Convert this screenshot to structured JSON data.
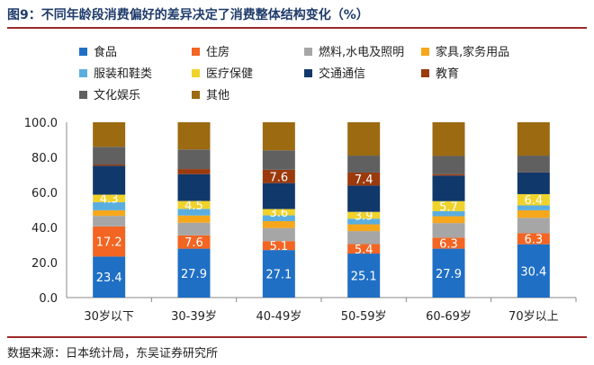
{
  "title": "图9：不同年龄段消费偏好的差异决定了消费整体结构变化（%）",
  "source": "数据来源：日本统计局，东吴证券研究所",
  "chart_data": {
    "type": "bar",
    "stacked": true,
    "categories": [
      "30岁以下",
      "30-39岁",
      "40-49岁",
      "50-59岁",
      "60-69岁",
      "70岁以上"
    ],
    "ylim": [
      0,
      100
    ],
    "yticks": [
      "0.0",
      "20.0",
      "40.0",
      "60.0",
      "80.0",
      "100.0"
    ],
    "grid": false,
    "legend_position": "top",
    "series": [
      {
        "name": "食品",
        "color": "#1f6fc5",
        "values": [
          23.4,
          27.9,
          27.1,
          25.1,
          27.9,
          30.4
        ],
        "labels": [
          "23.4",
          "27.9",
          "27.1",
          "25.1",
          "27.9",
          "30.4"
        ]
      },
      {
        "name": "住房",
        "color": "#f26522",
        "values": [
          17.2,
          7.6,
          5.1,
          5.4,
          6.3,
          6.3
        ],
        "labels": [
          "17.2",
          "7.6",
          "5.1",
          "5.4",
          "6.3",
          "6.3"
        ]
      },
      {
        "name": "燃料,水电及照明",
        "color": "#a6a6a6",
        "values": [
          6.0,
          7.2,
          7.5,
          7.4,
          8.3,
          8.8
        ],
        "labels": [
          "",
          "",
          "",
          "",
          "",
          ""
        ]
      },
      {
        "name": "家具,家务用品",
        "color": "#f7a71c",
        "values": [
          3.2,
          4.1,
          3.9,
          3.9,
          3.9,
          4.3
        ],
        "labels": [
          "",
          "",
          "",
          "",
          "",
          ""
        ]
      },
      {
        "name": "服装和鞋类",
        "color": "#5aaedf",
        "values": [
          4.6,
          3.8,
          3.3,
          3.2,
          2.9,
          2.8
        ],
        "labels": [
          "",
          "",
          "",
          "",
          "",
          ""
        ]
      },
      {
        "name": "医疗保健",
        "color": "#f0d22c",
        "values": [
          4.3,
          4.5,
          3.6,
          3.9,
          5.7,
          6.4
        ],
        "labels": [
          "4.3",
          "4.5",
          "3.6",
          "3.9",
          "5.7",
          "6.4"
        ]
      },
      {
        "name": "交通通信",
        "color": "#11386a",
        "values": [
          16.5,
          15.3,
          14.8,
          15.0,
          14.6,
          12.5
        ],
        "labels": [
          "",
          "",
          "",
          "",
          "",
          ""
        ]
      },
      {
        "name": "教育",
        "color": "#9b3a0c",
        "values": [
          0.7,
          2.9,
          7.6,
          7.4,
          0.8,
          0.2
        ],
        "labels": [
          "0.7",
          "2.9",
          "7.6",
          "7.4",
          "0.8",
          "0.2"
        ]
      },
      {
        "name": "文化娱乐",
        "color": "#606060",
        "values": [
          10.1,
          11.2,
          11.1,
          9.7,
          10.4,
          9.3
        ],
        "labels": [
          "",
          "",
          "",
          "",
          "",
          ""
        ]
      },
      {
        "name": "其他",
        "color": "#9c6a10",
        "values": [
          14.0,
          15.5,
          16.0,
          19.0,
          19.2,
          19.0
        ],
        "labels": [
          "",
          "",
          "",
          "",
          "",
          ""
        ]
      }
    ]
  }
}
